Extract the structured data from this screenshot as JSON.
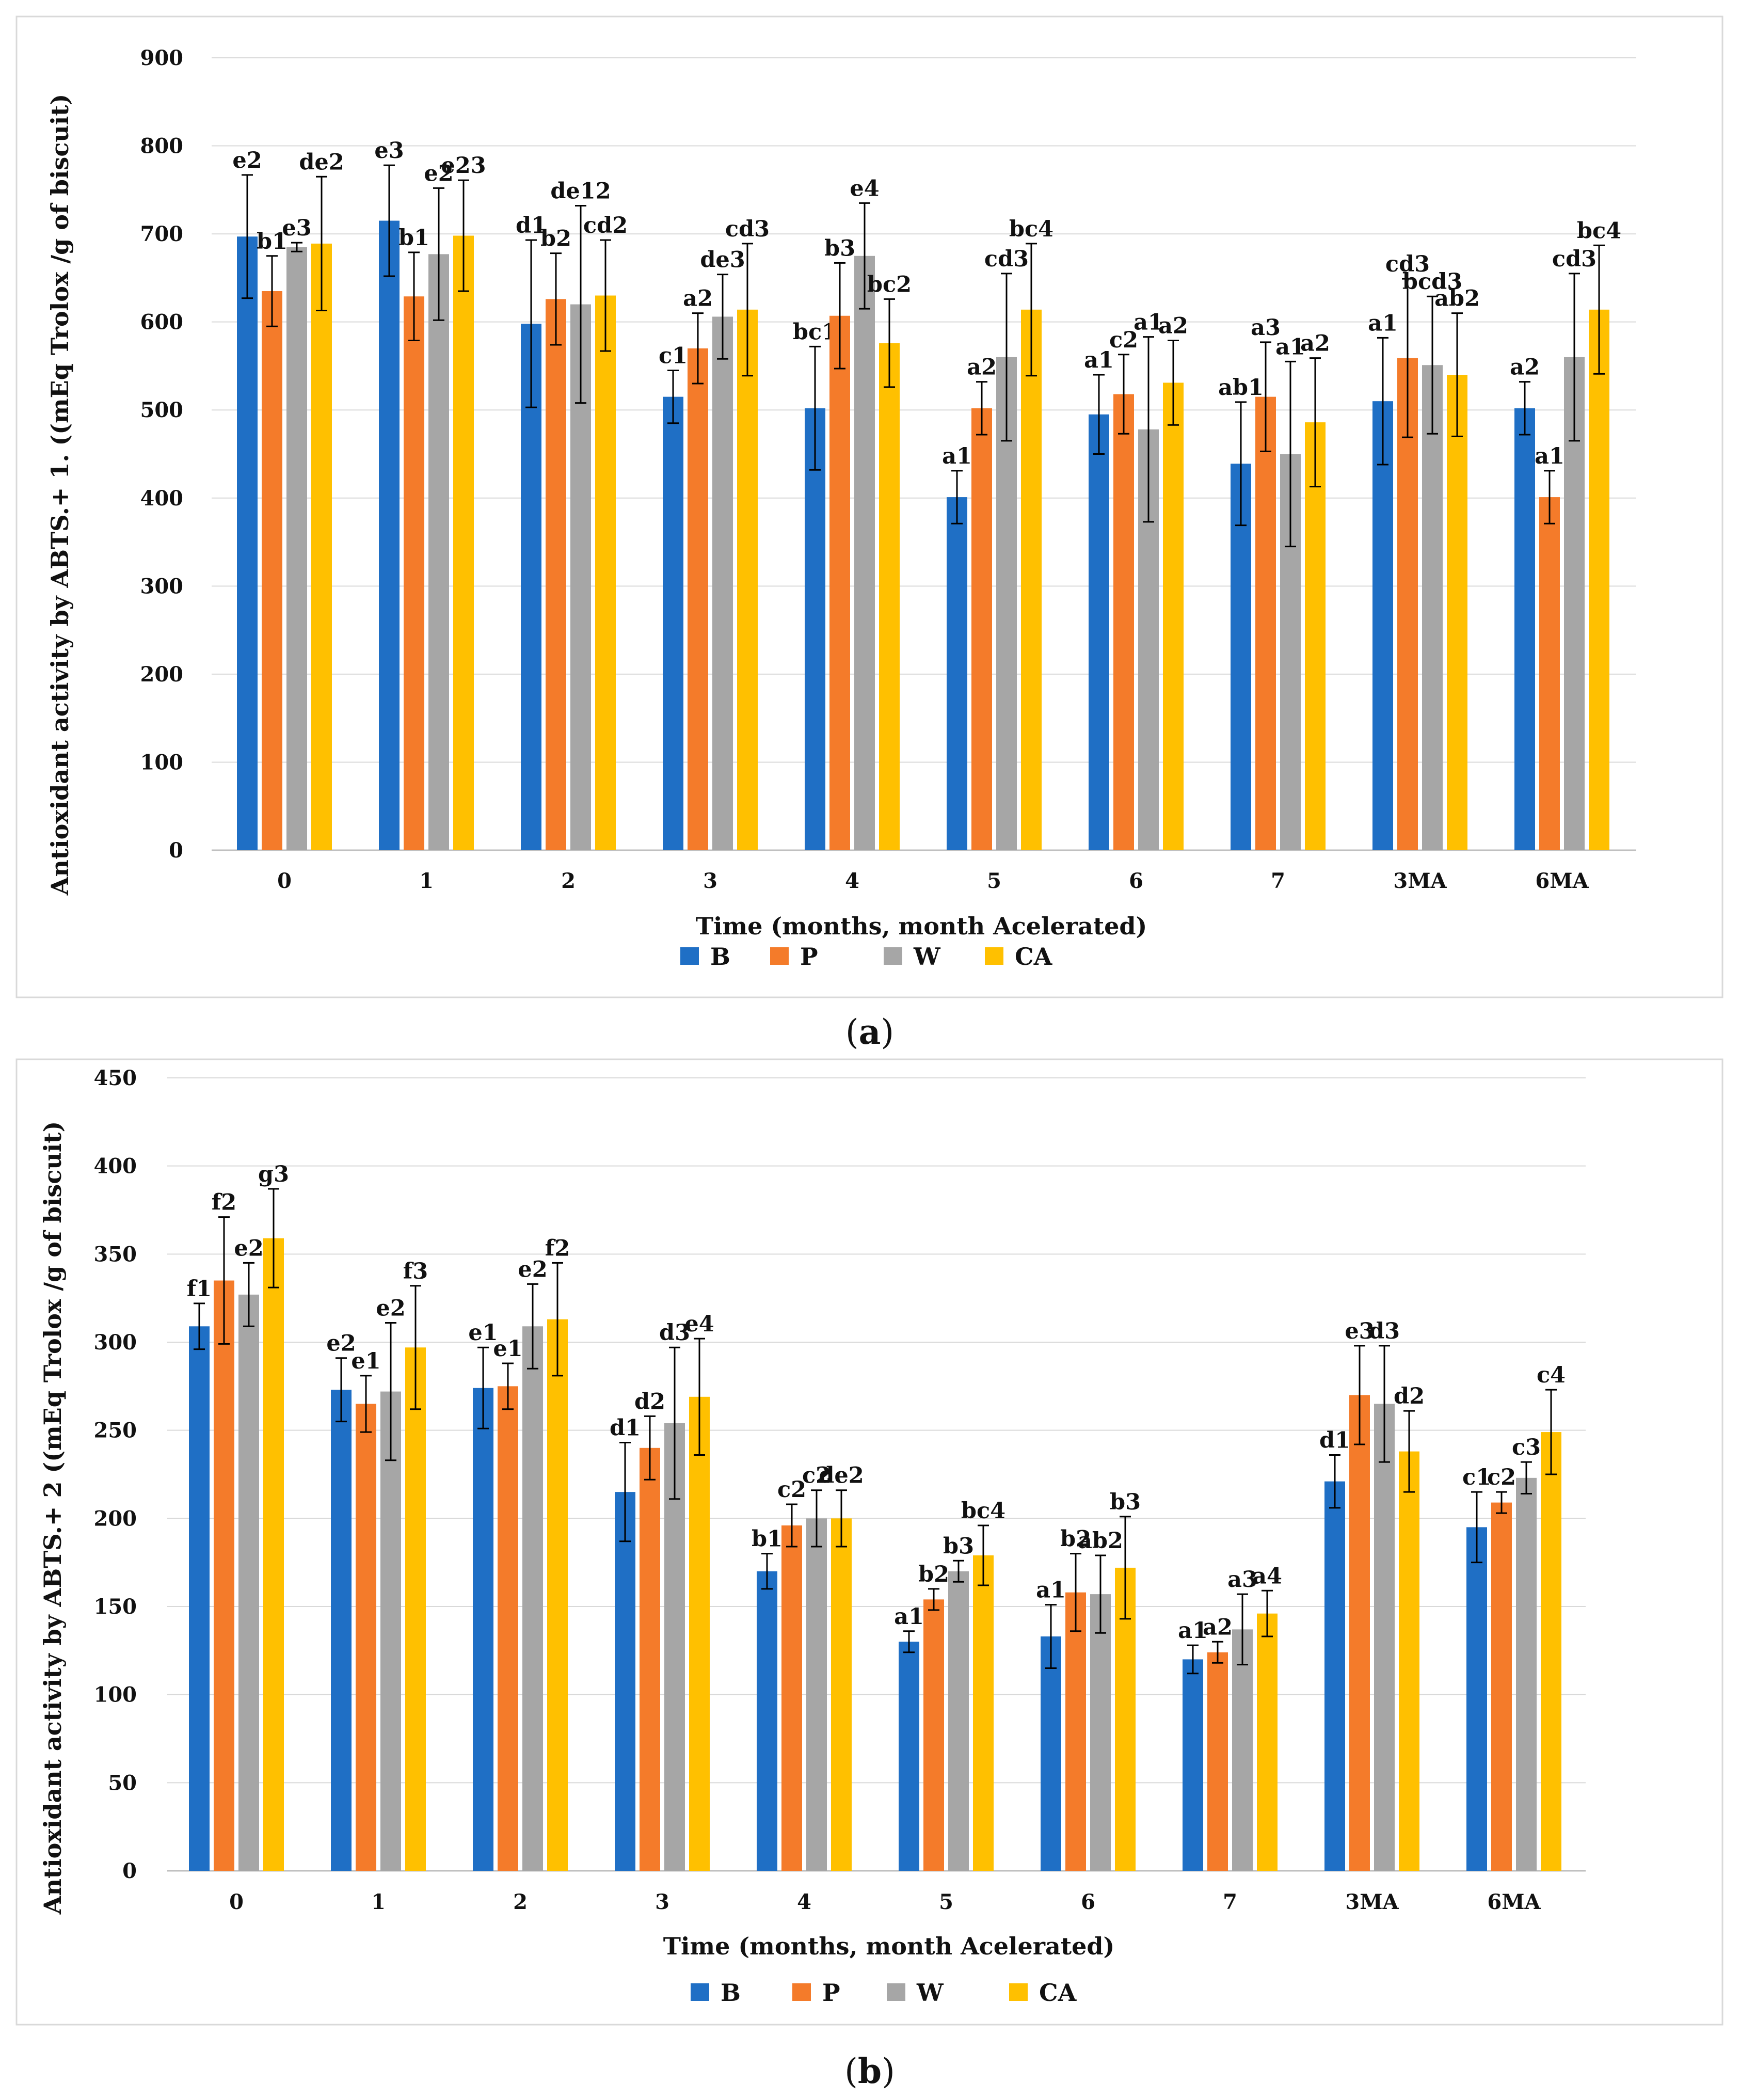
{
  "colors": {
    "B": "#1F6FC5",
    "P": "#F47B2A",
    "W": "#A6A6A6",
    "CA": "#FFC000"
  },
  "chart_data": [
    {
      "type": "bar",
      "panel_label": "a",
      "categories": [
        "0",
        "1",
        "2",
        "3",
        "4",
        "5",
        "6",
        "7",
        "3MA",
        "6MA"
      ],
      "xlabel": "Time (months, month Acelerated)",
      "ylabel": "Antioxidant activity by ABTS.+ 1. ((mEq Trolox /g of biscuit)",
      "ylim": [
        0,
        900
      ],
      "yticks": [
        0,
        100,
        200,
        300,
        400,
        500,
        600,
        700,
        800,
        900
      ],
      "grid": true,
      "legend_position": "bottom",
      "series": [
        {
          "name": "B",
          "values": [
            697,
            715,
            598,
            515,
            502,
            401,
            495,
            439,
            510,
            502
          ],
          "errors": [
            70,
            63,
            95,
            30,
            70,
            30,
            45,
            70,
            72,
            30
          ],
          "labels": [
            "e2",
            "e3",
            "d1",
            "c1",
            "bc1",
            "a1",
            "a1",
            "ab1",
            "a1",
            "a2"
          ]
        },
        {
          "name": "P",
          "values": [
            635,
            629,
            626,
            570,
            607,
            502,
            518,
            515,
            559,
            401
          ],
          "errors": [
            40,
            50,
            52,
            40,
            60,
            30,
            45,
            62,
            90,
            30
          ],
          "labels": [
            "b1",
            "b1",
            "b2",
            "a2",
            "b3",
            "a2",
            "c2",
            "a3",
            "cd3",
            "a1"
          ]
        },
        {
          "name": "W",
          "values": [
            685,
            677,
            620,
            606,
            675,
            560,
            478,
            450,
            551,
            560
          ],
          "errors": [
            5,
            75,
            112,
            48,
            60,
            95,
            105,
            105,
            78,
            95
          ],
          "labels": [
            "e3",
            "e2",
            "de12",
            "de3",
            "e4",
            "cd3",
            "a1",
            "a1",
            "bcd3",
            "cd3"
          ]
        },
        {
          "name": "CA",
          "values": [
            689,
            698,
            630,
            614,
            576,
            614,
            531,
            486,
            540,
            614
          ],
          "errors": [
            76,
            63,
            63,
            75,
            50,
            75,
            48,
            73,
            70,
            73
          ],
          "labels": [
            "de2",
            "e23",
            "cd2",
            "cd3",
            "bc2",
            "bc4",
            "a2",
            "a2",
            "ab2",
            "bc4"
          ]
        }
      ]
    },
    {
      "type": "bar",
      "panel_label": "b",
      "categories": [
        "0",
        "1",
        "2",
        "3",
        "4",
        "5",
        "6",
        "7",
        "3MA",
        "6MA"
      ],
      "xlabel": "Time (months, month Acelerated)",
      "ylabel": "Antioxidant activity by ABTS.+ 2  ((mEq Trolox /g of biscuit)",
      "ylim": [
        0,
        450
      ],
      "yticks": [
        0,
        50,
        100,
        150,
        200,
        250,
        300,
        350,
        400,
        450
      ],
      "grid": true,
      "legend_position": "bottom",
      "series": [
        {
          "name": "B",
          "values": [
            309,
            273,
            274,
            215,
            170,
            130,
            133,
            120,
            221,
            195
          ],
          "errors": [
            13,
            18,
            23,
            28,
            10,
            6,
            18,
            8,
            15,
            20
          ],
          "labels": [
            "f1",
            "e2",
            "e1",
            "d1",
            "b1",
            "a1",
            "a1",
            "a1",
            "d1",
            "c1"
          ]
        },
        {
          "name": "P",
          "values": [
            335,
            265,
            275,
            240,
            196,
            154,
            158,
            124,
            270,
            209
          ],
          "errors": [
            36,
            16,
            13,
            18,
            12,
            6,
            22,
            6,
            28,
            6
          ],
          "labels": [
            "f2",
            "e1",
            "e1",
            "d2",
            "c2",
            "b2",
            "b2",
            "a2",
            "e3",
            "c2"
          ]
        },
        {
          "name": "W",
          "values": [
            327,
            272,
            309,
            254,
            200,
            170,
            157,
            137,
            265,
            223
          ],
          "errors": [
            18,
            39,
            24,
            43,
            16,
            6,
            22,
            20,
            33,
            9
          ],
          "labels": [
            "e2",
            "e2",
            "e2",
            "d3",
            "c2",
            "b3",
            "ab2",
            "a3",
            "d3",
            "c3"
          ]
        },
        {
          "name": "CA",
          "values": [
            359,
            297,
            313,
            269,
            200,
            179,
            172,
            146,
            238,
            249
          ],
          "errors": [
            28,
            35,
            32,
            33,
            16,
            17,
            29,
            13,
            23,
            24
          ],
          "labels": [
            "g3",
            "f3",
            "f2",
            "e4",
            "de2",
            "bc4",
            "b3",
            "a4",
            "d2",
            "c4"
          ]
        }
      ]
    }
  ]
}
